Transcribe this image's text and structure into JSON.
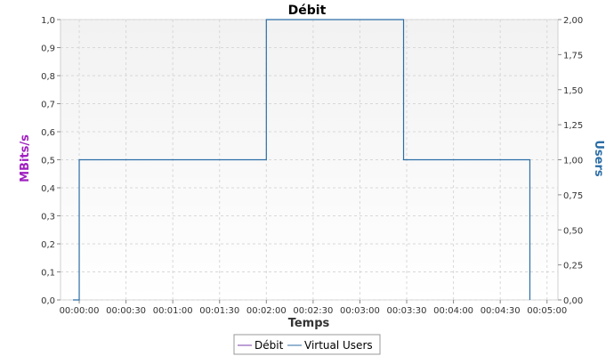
{
  "chart_data": {
    "type": "line",
    "title": "Débit",
    "xlabel": "Temps",
    "ylabel_left": "MBits/s",
    "ylabel_right": "Users",
    "x_unit": "seconds",
    "xlim": [
      -12,
      307
    ],
    "ylim_left": [
      0,
      1.0
    ],
    "ylim_right": [
      0,
      2.0
    ],
    "x_ticks": [
      {
        "value": 0,
        "label": "00:00:00"
      },
      {
        "value": 30,
        "label": "00:00:30"
      },
      {
        "value": 60,
        "label": "00:01:00"
      },
      {
        "value": 90,
        "label": "00:01:30"
      },
      {
        "value": 120,
        "label": "00:02:00"
      },
      {
        "value": 150,
        "label": "00:02:30"
      },
      {
        "value": 180,
        "label": "00:03:00"
      },
      {
        "value": 210,
        "label": "00:03:30"
      },
      {
        "value": 240,
        "label": "00:04:00"
      },
      {
        "value": 270,
        "label": "00:04:30"
      },
      {
        "value": 300,
        "label": "00:05:00"
      }
    ],
    "y_left_ticks": [
      {
        "value": 0.0,
        "label": "0,0"
      },
      {
        "value": 0.1,
        "label": "0,1"
      },
      {
        "value": 0.2,
        "label": "0,2"
      },
      {
        "value": 0.3,
        "label": "0,3"
      },
      {
        "value": 0.4,
        "label": "0,4"
      },
      {
        "value": 0.5,
        "label": "0,5"
      },
      {
        "value": 0.6,
        "label": "0,6"
      },
      {
        "value": 0.7,
        "label": "0,7"
      },
      {
        "value": 0.8,
        "label": "0,8"
      },
      {
        "value": 0.9,
        "label": "0,9"
      },
      {
        "value": 1.0,
        "label": "1,0"
      }
    ],
    "y_right_ticks": [
      {
        "value": 0.0,
        "label": "0,00"
      },
      {
        "value": 0.25,
        "label": "0,25"
      },
      {
        "value": 0.5,
        "label": "0,50"
      },
      {
        "value": 0.75,
        "label": "0,75"
      },
      {
        "value": 1.0,
        "label": "1,00"
      },
      {
        "value": 1.25,
        "label": "1,25"
      },
      {
        "value": 1.5,
        "label": "1,50"
      },
      {
        "value": 1.75,
        "label": "1,75"
      },
      {
        "value": 2.0,
        "label": "2,00"
      }
    ],
    "grid": true,
    "legend_position": "bottom",
    "series": [
      {
        "name": "Débit",
        "axis": "left",
        "color": "#7a3fa8",
        "points": []
      },
      {
        "name": "Virtual Users",
        "axis": "right",
        "color": "#2c6ea6",
        "step": true,
        "points": [
          {
            "x": -4,
            "y": 0
          },
          {
            "x": 0,
            "y": 0
          },
          {
            "x": 0,
            "y": 1
          },
          {
            "x": 120,
            "y": 1
          },
          {
            "x": 120,
            "y": 2
          },
          {
            "x": 208,
            "y": 2
          },
          {
            "x": 208,
            "y": 1
          },
          {
            "x": 289,
            "y": 1
          },
          {
            "x": 289,
            "y": 0
          }
        ]
      }
    ]
  }
}
